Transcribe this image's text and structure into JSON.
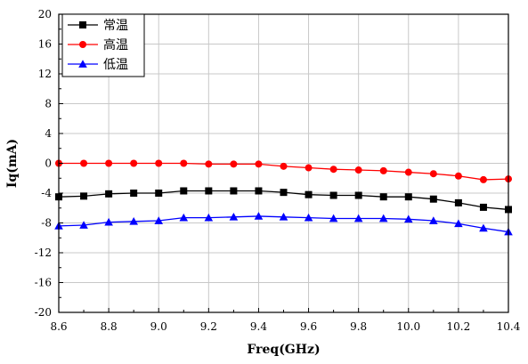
{
  "chart_data": {
    "type": "line",
    "title": "",
    "xlabel": "Freq(GHz)",
    "ylabel": "Iq(mA)",
    "xlim": [
      8.6,
      10.4
    ],
    "ylim": [
      -20,
      20
    ],
    "x_ticks": [
      8.6,
      8.8,
      9.0,
      9.2,
      9.4,
      9.6,
      9.8,
      10.0,
      10.2,
      10.4
    ],
    "x_tick_labels": [
      "8.6",
      "8.8",
      "9.0",
      "9.2",
      "9.4",
      "9.6",
      "9.8",
      "10.0",
      "10.2",
      "10.4"
    ],
    "y_ticks": [
      -20,
      -16,
      -12,
      -8,
      -4,
      0,
      4,
      8,
      12,
      16,
      20
    ],
    "y_tick_labels": [
      "-20",
      "-16",
      "-12",
      "-8",
      "-4",
      "0",
      "4",
      "8",
      "12",
      "16",
      "20"
    ],
    "grid": true,
    "legend_position": "top-left",
    "x": [
      8.6,
      8.7,
      8.8,
      8.9,
      9.0,
      9.1,
      9.2,
      9.3,
      9.4,
      9.5,
      9.6,
      9.7,
      9.8,
      9.9,
      10.0,
      10.1,
      10.2,
      10.3,
      10.4
    ],
    "series": [
      {
        "name": "常温",
        "color": "#000000",
        "marker": "square",
        "values": [
          -4.5,
          -4.4,
          -4.1,
          -4.0,
          -4.0,
          -3.7,
          -3.7,
          -3.7,
          -3.7,
          -3.9,
          -4.2,
          -4.3,
          -4.3,
          -4.5,
          -4.5,
          -4.8,
          -5.3,
          -5.9,
          -6.2
        ]
      },
      {
        "name": "高温",
        "color": "#ff0000",
        "marker": "circle",
        "values": [
          0.0,
          0.0,
          0.0,
          0.0,
          0.0,
          0.0,
          -0.1,
          -0.1,
          -0.1,
          -0.4,
          -0.6,
          -0.8,
          -0.9,
          -1.0,
          -1.2,
          -1.4,
          -1.7,
          -2.2,
          -2.1
        ]
      },
      {
        "name": "低温",
        "color": "#0000ff",
        "marker": "triangle",
        "values": [
          -8.4,
          -8.3,
          -7.9,
          -7.8,
          -7.7,
          -7.3,
          -7.3,
          -7.2,
          -7.1,
          -7.2,
          -7.3,
          -7.4,
          -7.4,
          -7.4,
          -7.5,
          -7.7,
          -8.1,
          -8.7,
          -9.2
        ]
      }
    ]
  }
}
